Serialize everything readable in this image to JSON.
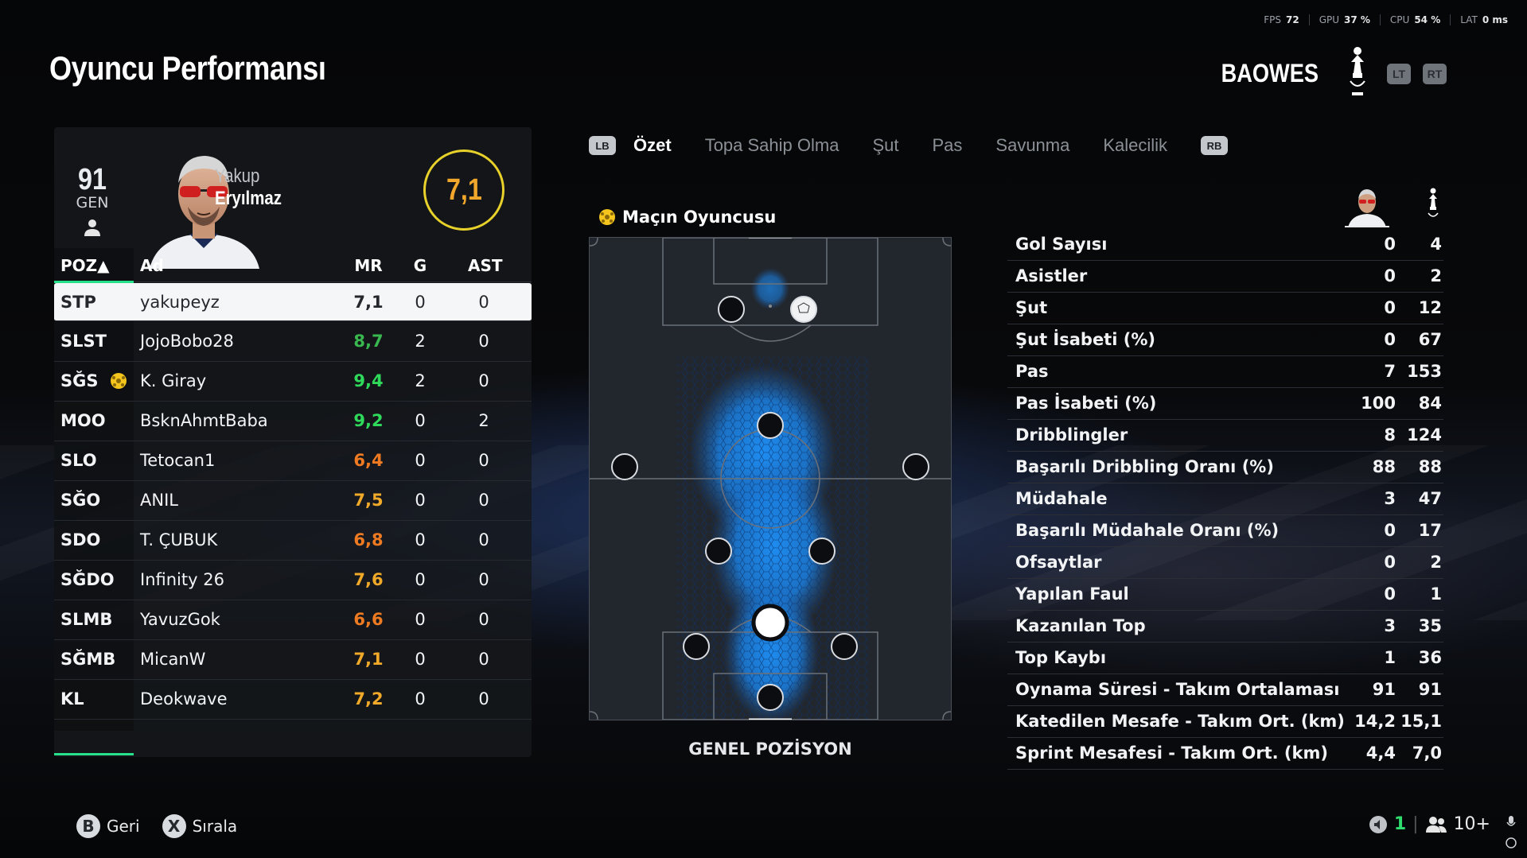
{
  "perf": [
    {
      "label": "FPS",
      "value": "72"
    },
    {
      "label": "GPU",
      "value": "37 %"
    },
    {
      "label": "CPU",
      "value": "54 %"
    },
    {
      "label": "LAT",
      "value": "0 ms"
    }
  ],
  "title": "Oyuncu Performansı",
  "team": {
    "name": "BAOWES",
    "lt": "LT",
    "rt": "RT"
  },
  "player": {
    "ovr": "91",
    "ovr_label": "GEN",
    "first_name": "Yakup",
    "last_name": "Eryılmaz",
    "rating": "7,1"
  },
  "table": {
    "headers": {
      "pos": "POZ▲",
      "name": "Ad",
      "mr": "MR",
      "g": "G",
      "ast": "AST"
    },
    "rows": [
      {
        "pos": "STP",
        "name": "yakupeyz",
        "mr": "7,1",
        "g": "0",
        "ast": "0",
        "mr_color": "#24272c",
        "selected": true
      },
      {
        "pos": "SLST",
        "name": "JojoBobo28",
        "mr": "8,7",
        "g": "2",
        "ast": "0",
        "mr_color": "#38b84e"
      },
      {
        "pos": "SĞS",
        "name": "K. Giray",
        "mr": "9,4",
        "g": "2",
        "ast": "0",
        "mr_color": "#2fd95a",
        "motm": true
      },
      {
        "pos": "MOO",
        "name": "BsknAhmtBaba",
        "mr": "9,2",
        "g": "0",
        "ast": "2",
        "mr_color": "#2fd95a"
      },
      {
        "pos": "SLO",
        "name": "Tetocan1",
        "mr": "6,4",
        "g": "0",
        "ast": "0",
        "mr_color": "#ee7a22"
      },
      {
        "pos": "SĞO",
        "name": "ANIL",
        "mr": "7,5",
        "g": "0",
        "ast": "0",
        "mr_color": "#f0a928"
      },
      {
        "pos": "SDO",
        "name": "T. ÇUBUK",
        "mr": "6,8",
        "g": "0",
        "ast": "0",
        "mr_color": "#ee7a22"
      },
      {
        "pos": "SĞDO",
        "name": "Infinity 26",
        "mr": "7,6",
        "g": "0",
        "ast": "0",
        "mr_color": "#f0a928"
      },
      {
        "pos": "SLMB",
        "name": "YavuzGok",
        "mr": "6,6",
        "g": "0",
        "ast": "0",
        "mr_color": "#ee7a22"
      },
      {
        "pos": "SĞMB",
        "name": "MicanW",
        "mr": "7,1",
        "g": "0",
        "ast": "0",
        "mr_color": "#f0a928"
      },
      {
        "pos": "KL",
        "name": "Deokwave",
        "mr": "7,2",
        "g": "0",
        "ast": "0",
        "mr_color": "#f0a928"
      }
    ]
  },
  "tabs": {
    "lb": "LB",
    "rb": "RB",
    "items": [
      "Özet",
      "Topa Sahip Olma",
      "Şut",
      "Pas",
      "Savunma",
      "Kalecilik"
    ],
    "active": "Özet"
  },
  "motm_label": "Maçın Oyuncusu",
  "pitch_label": "GENEL POZİSYON",
  "stats": [
    {
      "label": "Gol Sayısı",
      "player": "0",
      "team": "4"
    },
    {
      "label": "Asistler",
      "player": "0",
      "team": "2"
    },
    {
      "label": "Şut",
      "player": "0",
      "team": "12"
    },
    {
      "label": "Şut İsabeti (%)",
      "player": "0",
      "team": "67"
    },
    {
      "label": "Pas",
      "player": "7",
      "team": "153"
    },
    {
      "label": "Pas İsabeti (%)",
      "player": "100",
      "team": "84"
    },
    {
      "label": "Dribblingler",
      "player": "8",
      "team": "124"
    },
    {
      "label": "Başarılı Dribbling Oranı (%)",
      "player": "88",
      "team": "88"
    },
    {
      "label": "Müdahale",
      "player": "3",
      "team": "47"
    },
    {
      "label": "Başarılı Müdahale Oranı (%)",
      "player": "0",
      "team": "17"
    },
    {
      "label": "Ofsaytlar",
      "player": "0",
      "team": "2"
    },
    {
      "label": "Yapılan Faul",
      "player": "0",
      "team": "1"
    },
    {
      "label": "Kazanılan Top",
      "player": "3",
      "team": "35"
    },
    {
      "label": "Top Kaybı",
      "player": "1",
      "team": "36"
    },
    {
      "label": "Oynama Süresi - Takım Ortalaması",
      "player": "91",
      "team": "91"
    },
    {
      "label": "Katedilen Mesafe - Takım Ort. (km)",
      "player": "14,2",
      "team": "15,1"
    },
    {
      "label": "Sprint Mesafesi - Takım Ort. (km)",
      "player": "4,4",
      "team": "7,0"
    }
  ],
  "footer": {
    "back_key": "B",
    "back_label": "Geri",
    "sort_key": "X",
    "sort_label": "Sırala",
    "voice_count": "1",
    "party_count": "10+"
  },
  "colors": {
    "accent": "#27e08a",
    "rating_ring": "#e7d12a",
    "rating_text": "#f1a72b",
    "heat": "#1e8cf0"
  },
  "icons": [
    "person-icon",
    "motm-ball-icon",
    "club-crest-icon",
    "speaker-icon",
    "party-icon",
    "mic-icon"
  ]
}
